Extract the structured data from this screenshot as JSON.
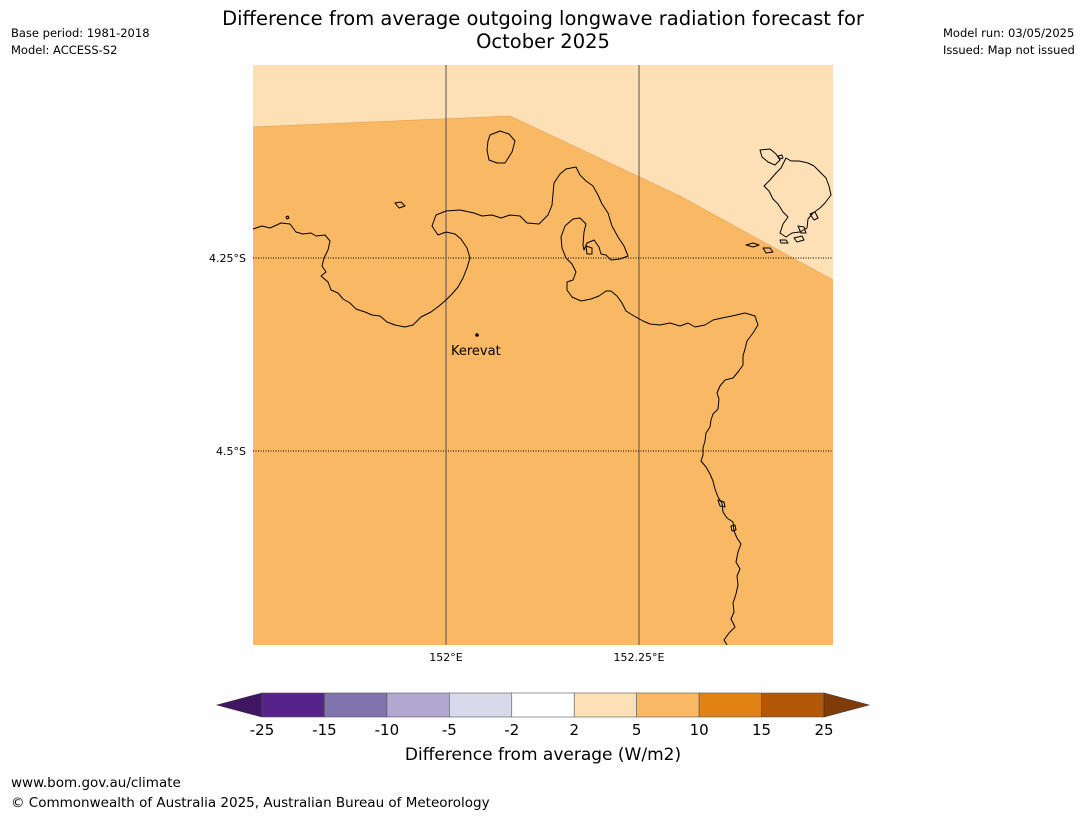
{
  "header": {
    "title_line1": "Difference from average outgoing longwave radiation forecast for",
    "title_line2": "October 2025",
    "base_period": "Base period: 1981-2018",
    "model": "Model: ACCESS-S2",
    "model_run": "Model run: 03/05/2025",
    "issued": "Issued: Map not issued"
  },
  "map": {
    "lat_labels": [
      "4.25°S",
      "4.5°S"
    ],
    "lon_labels": [
      "152°E",
      "152.25°E"
    ],
    "place": "Kerevat",
    "colors": {
      "main_category": "#f9b864",
      "light_category": "#fde0b6",
      "coastline": "#000000"
    }
  },
  "colorbar": {
    "label": "Difference from average (W/m2)",
    "ticks": [
      "-25",
      "-15",
      "-10",
      "-5",
      "-2",
      "2",
      "5",
      "10",
      "15",
      "25"
    ],
    "colors": [
      "#401562",
      "#58228b",
      "#8073ae",
      "#b1a8d1",
      "#d9d9eb",
      "#ffffff",
      "#fde0b6",
      "#f9b864",
      "#e08214",
      "#b35806",
      "#7f3b08"
    ]
  },
  "footer": {
    "url": "www.bom.gov.au/climate",
    "copyright": "© Commonwealth of Australia 2025, Australian Bureau of Meteorology"
  }
}
